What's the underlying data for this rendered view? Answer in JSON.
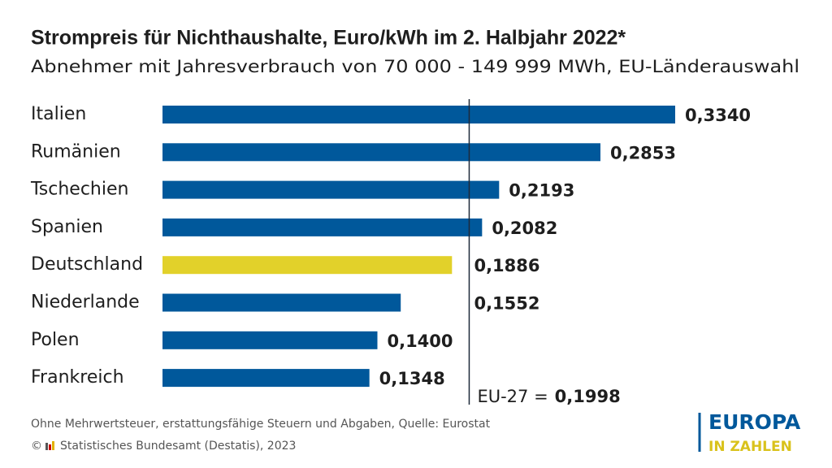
{
  "chart_data": {
    "type": "bar",
    "orientation": "horizontal",
    "title": "Strompreis für Nichthaushalte, Euro/kWh im 2. Halbjahr 2022*",
    "subtitle": "Abnehmer mit Jahresverbrauch von 70 000 - 149 999 MWh, EU-Länderauswahl",
    "categories": [
      "Italien",
      "Rumänien",
      "Tschechien",
      "Spanien",
      "Deutschland",
      "Niederlande",
      "Polen",
      "Frankreich"
    ],
    "values": [
      0.334,
      0.2853,
      0.2193,
      0.2082,
      0.1886,
      0.1552,
      0.14,
      0.1348
    ],
    "value_labels": [
      "0,3340",
      "0,2853",
      "0,2193",
      "0,2082",
      "0,1886",
      "0,1552",
      "0,1400",
      "0,1348"
    ],
    "colors": [
      "#00589b",
      "#00589b",
      "#00589b",
      "#00589b",
      "#e2d12a",
      "#00589b",
      "#00589b",
      "#00589b"
    ],
    "reference_line": {
      "label": "EU-27 =",
      "value": 0.1998,
      "value_label": "0,1998"
    }
  },
  "footer": {
    "note": "Ohne Mehrwertsteuer, erstattungsfähige Steuern und Abgaben, Quelle: Eurostat",
    "copyright_symbol": "©",
    "copyright": "Statistisches Bundesamt (Destatis), 2023"
  },
  "logo": {
    "line1": "EUROPA",
    "line2": "IN ZAHLEN"
  }
}
